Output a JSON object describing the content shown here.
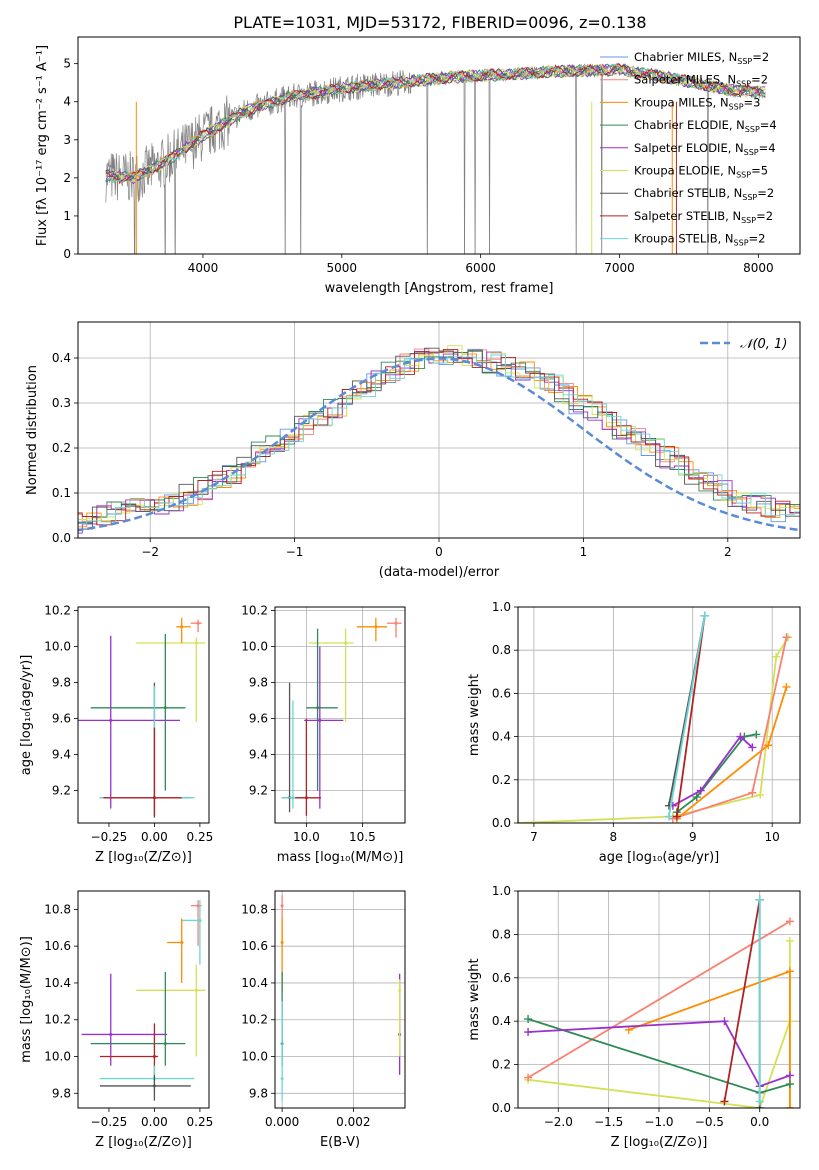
{
  "figure_title": "PLATE=1031, MJD=53172, FIBERID=0096, z=0.138",
  "colors": {
    "Chabrier MILES": "#6495ed",
    "Salpeter MILES": "#fa8072",
    "Kroupa MILES": "#ff8c00",
    "Chabrier ELODIE": "#2e8b57",
    "Salpeter ELODIE": "#9932cc",
    "Kroupa ELODIE": "#d4e157",
    "Chabrier STELIB": "#555555",
    "Salpeter STELIB": "#b22222",
    "Kroupa STELIB": "#6ad6d6",
    "data": "#808080",
    "normal": "#5b8bd6"
  },
  "chart_data": [
    {
      "id": "spectrum",
      "type": "line",
      "title": "PLATE=1031, MJD=53172, FIBERID=0096, z=0.138",
      "xlabel": "wavelength [Angstrom, rest frame]",
      "ylabel": "Flux [fλ 10⁻¹⁷ erg cm⁻² s⁻¹ A⁻¹]",
      "xlim": [
        3100,
        8300
      ],
      "ylim": [
        0,
        5.7
      ],
      "xticks": [
        "4000",
        "5000",
        "6000",
        "7000",
        "8000"
      ],
      "yticks": [
        "0",
        "1",
        "2",
        "3",
        "4",
        "5"
      ],
      "grid": false,
      "legend_position": "top-right",
      "continuum": {
        "x": [
          3300,
          3500,
          3700,
          4000,
          4300,
          4600,
          5000,
          5400,
          5800,
          6200,
          6600,
          7000,
          7400,
          7800,
          8050
        ],
        "y": [
          2.05,
          2.0,
          2.35,
          3.1,
          3.75,
          4.1,
          4.35,
          4.5,
          4.65,
          4.72,
          4.8,
          4.85,
          4.6,
          4.3,
          4.25
        ]
      },
      "legend": [
        {
          "label": "Chabrier MILES, N",
          "sub": "SSP",
          "suffix": "=2",
          "color_key": "Chabrier MILES"
        },
        {
          "label": "Salpeter MILES, N",
          "sub": "SSP",
          "suffix": "=2",
          "color_key": "Salpeter MILES"
        },
        {
          "label": "Kroupa MILES, N",
          "sub": "SSP",
          "suffix": "=3",
          "color_key": "Kroupa MILES"
        },
        {
          "label": "Chabrier ELODIE, N",
          "sub": "SSP",
          "suffix": "=4",
          "color_key": "Chabrier ELODIE"
        },
        {
          "label": "Salpeter ELODIE, N",
          "sub": "SSP",
          "suffix": "=4",
          "color_key": "Salpeter ELODIE"
        },
        {
          "label": "Kroupa ELODIE, N",
          "sub": "SSP",
          "suffix": "=5",
          "color_key": "Kroupa ELODIE"
        },
        {
          "label": "Chabrier STELIB, N",
          "sub": "SSP",
          "suffix": "=2",
          "color_key": "Chabrier STELIB"
        },
        {
          "label": "Salpeter STELIB, N",
          "sub": "SSP",
          "suffix": "=2",
          "color_key": "Salpeter STELIB"
        },
        {
          "label": "Kroupa STELIB, N",
          "sub": "SSP",
          "suffix": "=2",
          "color_key": "Kroupa STELIB"
        }
      ]
    },
    {
      "id": "residuals",
      "type": "line",
      "xlabel": "(data-model)/error",
      "ylabel": "Normed distribution",
      "xlim": [
        -2.5,
        2.5
      ],
      "ylim": [
        0,
        0.48
      ],
      "xticks": [
        "−2",
        "−1",
        "0",
        "1",
        "2"
      ],
      "yticks": [
        "0.0",
        "0.1",
        "0.2",
        "0.3",
        "0.4"
      ],
      "grid": true,
      "legend_position": "top-right",
      "legend_label": "𝒩(0, 1)",
      "normal": {
        "mean": 0,
        "sigma": 1
      },
      "bin_width": 0.1,
      "base_hist": [
        0.02,
        0.022,
        0.025,
        0.03,
        0.035,
        0.04,
        0.047,
        0.055,
        0.063,
        0.07,
        0.078,
        0.085,
        0.095,
        0.11,
        0.125,
        0.145,
        0.165,
        0.19,
        0.21,
        0.23,
        0.25,
        0.27,
        0.29,
        0.31,
        0.33,
        0.35,
        0.37,
        0.385,
        0.395,
        0.4,
        0.41,
        0.405,
        0.4,
        0.39,
        0.38,
        0.37,
        0.355,
        0.34,
        0.32,
        0.3,
        0.28,
        0.26,
        0.24,
        0.22,
        0.2,
        0.18,
        0.16,
        0.14,
        0.12,
        0.105,
        0.09,
        0.08,
        0.07,
        0.06,
        0.052,
        0.045,
        0.038,
        0.032,
        0.027,
        0.023
      ]
    },
    {
      "id": "age_vs_Z",
      "type": "scatter",
      "xlabel": "Z [log₁₀(Z/Z⊙)]",
      "ylabel": "age  [log₁₀(age/yr)]",
      "xlim": [
        -0.42,
        0.3
      ],
      "ylim": [
        9.02,
        10.22
      ],
      "xticks": [
        {
          "v": -0.25,
          "t": "−0.25"
        },
        {
          "v": 0,
          "t": "0.00"
        },
        {
          "v": 0.25,
          "t": "0.25"
        }
      ],
      "yticks": [
        {
          "v": 9.2,
          "t": "9.2"
        },
        {
          "v": 9.4,
          "t": "9.4"
        },
        {
          "v": 9.6,
          "t": "9.6"
        },
        {
          "v": 9.8,
          "t": "9.8"
        },
        {
          "v": 10.0,
          "t": "10.0"
        },
        {
          "v": 10.2,
          "t": "10.2"
        }
      ],
      "grid": false,
      "points": [
        {
          "c": "Kroupa ELODIE",
          "x": 0.23,
          "y": 10.02,
          "x0": -0.1,
          "x1": 0.28,
          "y0": 9.58,
          "y1": 10.05
        },
        {
          "c": "Kroupa MILES",
          "x": 0.15,
          "y": 10.11,
          "x0": 0.12,
          "x1": 0.2,
          "y0": 10.02,
          "y1": 10.16
        },
        {
          "c": "Salpeter MILES",
          "x": 0.24,
          "y": 10.13,
          "x0": 0.2,
          "x1": 0.26,
          "y0": 10.08,
          "y1": 10.15
        },
        {
          "c": "Chabrier ELODIE",
          "x": 0.06,
          "y": 9.66,
          "x0": -0.35,
          "x1": 0.17,
          "y0": 9.2,
          "y1": 10.07
        },
        {
          "c": "Salpeter ELODIE",
          "x": -0.24,
          "y": 9.59,
          "x0": -0.42,
          "x1": 0.14,
          "y0": 9.1,
          "y1": 10.06
        },
        {
          "c": "Chabrier STELIB",
          "x": 0.0,
          "y": 9.16,
          "x0": -0.3,
          "x1": 0.2,
          "y0": 9.05,
          "y1": 9.8
        },
        {
          "c": "Kroupa STELIB",
          "x": 0.0,
          "y": 9.16,
          "x0": -0.3,
          "x1": 0.22,
          "y0": 9.08,
          "y1": 9.78
        },
        {
          "c": "Salpeter STELIB",
          "x": 0.0,
          "y": 9.16,
          "x0": -0.28,
          "x1": 0.15,
          "y0": 9.06,
          "y1": 9.55
        }
      ]
    },
    {
      "id": "age_vs_mass",
      "type": "scatter",
      "xlabel": "mass [log₁₀(M/M⊙)]",
      "ylabel": "",
      "xlim": [
        9.72,
        10.88
      ],
      "ylim": [
        9.02,
        10.22
      ],
      "xticks": [
        {
          "v": 10.0,
          "t": "10.0"
        },
        {
          "v": 10.5,
          "t": "10.5"
        }
      ],
      "yticks": [
        {
          "v": 9.2,
          "t": "9.2"
        },
        {
          "v": 9.4,
          "t": "9.4"
        },
        {
          "v": 9.6,
          "t": "9.6"
        },
        {
          "v": 9.8,
          "t": "9.8"
        },
        {
          "v": 10.0,
          "t": "10.0"
        },
        {
          "v": 10.2,
          "t": "10.2"
        }
      ],
      "grid": true,
      "points": [
        {
          "c": "Kroupa ELODIE",
          "x": 10.35,
          "y": 10.02,
          "x0": 10.02,
          "x1": 10.42,
          "y0": 9.58,
          "y1": 10.1
        },
        {
          "c": "Kroupa MILES",
          "x": 10.62,
          "y": 10.11,
          "x0": 10.45,
          "x1": 10.72,
          "y0": 10.03,
          "y1": 10.16
        },
        {
          "c": "Salpeter MILES",
          "x": 10.8,
          "y": 10.13,
          "x0": 10.72,
          "x1": 10.85,
          "y0": 10.05,
          "y1": 10.16
        },
        {
          "c": "Chabrier ELODIE",
          "x": 10.1,
          "y": 9.66,
          "x0": 10.0,
          "x1": 10.28,
          "y0": 9.2,
          "y1": 10.1
        },
        {
          "c": "Salpeter ELODIE",
          "x": 10.12,
          "y": 9.59,
          "x0": 9.98,
          "x1": 10.33,
          "y0": 9.1,
          "y1": 10.0
        },
        {
          "c": "Chabrier STELIB",
          "x": 9.85,
          "y": 9.16,
          "x0": 9.78,
          "x1": 9.96,
          "y0": 9.08,
          "y1": 9.8
        },
        {
          "c": "Kroupa STELIB",
          "x": 9.88,
          "y": 9.16,
          "x0": 9.78,
          "x1": 9.98,
          "y0": 9.1,
          "y1": 9.7
        },
        {
          "c": "Salpeter STELIB",
          "x": 10.0,
          "y": 9.16,
          "x0": 9.9,
          "x1": 10.13,
          "y0": 9.06,
          "y1": 9.6
        }
      ]
    },
    {
      "id": "cumulative_age",
      "type": "line",
      "xlabel": "age  [log₁₀(age/yr)]",
      "ylabel": "mass weight",
      "xlim": [
        6.8,
        10.35
      ],
      "ylim": [
        0,
        1.0
      ],
      "xticks": [
        {
          "v": 7,
          "t": "7"
        },
        {
          "v": 8,
          "t": "8"
        },
        {
          "v": 9,
          "t": "9"
        },
        {
          "v": 10,
          "t": "10"
        }
      ],
      "yticks": [
        {
          "v": 0,
          "t": "0.0"
        },
        {
          "v": 0.2,
          "t": "0.2"
        },
        {
          "v": 0.4,
          "t": "0.4"
        },
        {
          "v": 0.6,
          "t": "0.6"
        },
        {
          "v": 0.8,
          "t": "0.8"
        },
        {
          "v": 1.0,
          "t": "1.0"
        }
      ],
      "grid": true,
      "series": [
        {
          "c": "Kroupa ELODIE",
          "x": [
            6.8,
            8.75,
            9.85,
            10.05,
            10.2
          ],
          "y": [
            0.0,
            0.03,
            0.13,
            0.77,
            0.86
          ]
        },
        {
          "c": "Kroupa MILES",
          "x": [
            8.8,
            9.95,
            10.18
          ],
          "y": [
            0.02,
            0.36,
            0.63
          ]
        },
        {
          "c": "Salpeter MILES",
          "x": [
            8.75,
            9.75,
            10.18
          ],
          "y": [
            0.02,
            0.14,
            0.86
          ]
        },
        {
          "c": "Chabrier ELODIE",
          "x": [
            8.8,
            9.05,
            9.65,
            9.8
          ],
          "y": [
            0.05,
            0.12,
            0.4,
            0.41
          ]
        },
        {
          "c": "Salpeter ELODIE",
          "x": [
            8.75,
            9.1,
            9.6,
            9.75
          ],
          "y": [
            0.08,
            0.15,
            0.4,
            0.35
          ]
        },
        {
          "c": "Chabrier STELIB",
          "x": [
            8.7,
            9.15
          ],
          "y": [
            0.08,
            0.96
          ]
        },
        {
          "c": "Salpeter STELIB",
          "x": [
            8.8,
            9.15
          ],
          "y": [
            0.03,
            0.96
          ]
        },
        {
          "c": "Kroupa STELIB",
          "x": [
            8.7,
            9.15
          ],
          "y": [
            0.03,
            0.96
          ]
        }
      ]
    },
    {
      "id": "mass_vs_Z",
      "type": "scatter",
      "xlabel": "Z [log₁₀(Z/Z⊙)]",
      "ylabel": "mass [log₁₀(M/M⊙)]",
      "xlim": [
        -0.42,
        0.3
      ],
      "ylim": [
        9.72,
        10.9
      ],
      "xticks": [
        {
          "v": -0.25,
          "t": "−0.25"
        },
        {
          "v": 0,
          "t": "0.00"
        },
        {
          "v": 0.25,
          "t": "0.25"
        }
      ],
      "yticks": [
        {
          "v": 9.8,
          "t": "9.8"
        },
        {
          "v": 10.0,
          "t": "10.0"
        },
        {
          "v": 10.2,
          "t": "10.2"
        },
        {
          "v": 10.4,
          "t": "10.4"
        },
        {
          "v": 10.6,
          "t": "10.6"
        },
        {
          "v": 10.8,
          "t": "10.8"
        }
      ],
      "grid": false,
      "points": [
        {
          "c": "Salpeter MILES",
          "x": 0.24,
          "y": 10.82,
          "x0": 0.2,
          "x1": 0.26,
          "y0": 10.6,
          "y1": 10.85
        },
        {
          "c": "Kroupa STELIB",
          "x": 0.25,
          "y": 10.74,
          "x0": 0.15,
          "x1": 0.26,
          "y0": 10.5,
          "y1": 10.85
        },
        {
          "c": "Kroupa MILES",
          "x": 0.15,
          "y": 10.62,
          "x0": 0.07,
          "x1": 0.16,
          "y0": 10.4,
          "y1": 10.75
        },
        {
          "c": "Kroupa ELODIE",
          "x": 0.23,
          "y": 10.36,
          "x0": -0.1,
          "x1": 0.28,
          "y0": 10.0,
          "y1": 10.5
        },
        {
          "c": "Salpeter ELODIE",
          "x": -0.24,
          "y": 10.12,
          "x0": -0.4,
          "x1": 0.07,
          "y0": 9.95,
          "y1": 10.45
        },
        {
          "c": "Chabrier ELODIE",
          "x": 0.06,
          "y": 10.07,
          "x0": -0.35,
          "x1": 0.17,
          "y0": 9.95,
          "y1": 10.46
        },
        {
          "c": "Salpeter STELIB",
          "x": 0.0,
          "y": 10.0,
          "x0": -0.3,
          "x1": 0.02,
          "y0": 9.9,
          "y1": 10.18
        },
        {
          "c": "Kroupa STELIB",
          "x": 0.0,
          "y": 9.88,
          "x0": -0.3,
          "x1": 0.22,
          "y0": 9.8,
          "y1": 9.95
        },
        {
          "c": "Chabrier STELIB",
          "x": 0.0,
          "y": 9.84,
          "x0": -0.3,
          "x1": 0.2,
          "y0": 9.76,
          "y1": 9.9
        }
      ]
    },
    {
      "id": "mass_vs_ebv",
      "type": "scatter",
      "xlabel": "E(B-V)",
      "ylabel": "",
      "xlim": [
        -0.0002,
        0.00345
      ],
      "ylim": [
        9.72,
        10.9
      ],
      "xticks": [
        {
          "v": 0.0,
          "t": "0.000"
        },
        {
          "v": 0.002,
          "t": "0.002"
        }
      ],
      "yticks": [
        {
          "v": 9.8,
          "t": "9.8"
        },
        {
          "v": 10.0,
          "t": "10.0"
        },
        {
          "v": 10.2,
          "t": "10.2"
        },
        {
          "v": 10.4,
          "t": "10.4"
        },
        {
          "v": 10.6,
          "t": "10.6"
        },
        {
          "v": 10.8,
          "t": "10.8"
        }
      ],
      "grid": true,
      "points": [
        {
          "c": "Salpeter MILES",
          "x": 0.0,
          "y": 10.82,
          "x0": 0.0,
          "x1": 0.0,
          "y0": 10.6,
          "y1": 10.88
        },
        {
          "c": "Kroupa MILES",
          "x": 0.0,
          "y": 10.62,
          "x0": 0.0,
          "x1": 0.0,
          "y0": 10.35,
          "y1": 10.75
        },
        {
          "c": "Chabrier ELODIE",
          "x": 0.0,
          "y": 10.07,
          "x0": 0.0,
          "x1": 0.0,
          "y0": 9.95,
          "y1": 10.46
        },
        {
          "c": "Kroupa STELIB",
          "x": 0.0,
          "y": 9.88,
          "x0": 0.0,
          "x1": 0.0,
          "y0": 9.76,
          "y1": 10.3
        },
        {
          "c": "Salpeter ELODIE",
          "x": 0.0033,
          "y": 10.12,
          "x0": 0.0033,
          "x1": 0.0033,
          "y0": 9.9,
          "y1": 10.45
        },
        {
          "c": "Kroupa ELODIE",
          "x": 0.0033,
          "y": 10.36,
          "x0": 0.0033,
          "x1": 0.0033,
          "y0": 10.0,
          "y1": 10.42
        }
      ]
    },
    {
      "id": "cumulative_Z",
      "type": "line",
      "xlabel": "Z [log₁₀(Z/Z⊙)]",
      "ylabel": "mass weight",
      "xlim": [
        -2.4,
        0.4
      ],
      "ylim": [
        0,
        1.0
      ],
      "xticks": [
        {
          "v": -2.0,
          "t": "−2.0"
        },
        {
          "v": -1.5,
          "t": "−1.5"
        },
        {
          "v": -1.0,
          "t": "−1.0"
        },
        {
          "v": -0.5,
          "t": "−0.5"
        },
        {
          "v": 0.0,
          "t": "0.0"
        }
      ],
      "yticks": [
        {
          "v": 0,
          "t": "0.0"
        },
        {
          "v": 0.2,
          "t": "0.2"
        },
        {
          "v": 0.4,
          "t": "0.4"
        },
        {
          "v": 0.6,
          "t": "0.6"
        },
        {
          "v": 0.8,
          "t": "0.8"
        },
        {
          "v": 1.0,
          "t": "1.0"
        }
      ],
      "grid": true,
      "series": [
        {
          "c": "Kroupa ELODIE",
          "x": [
            -2.3,
            0.0,
            0.3,
            0.3,
            0.3
          ],
          "y": [
            0.13,
            0.0,
            0.4,
            0.77,
            0.0
          ]
        },
        {
          "c": "Kroupa MILES",
          "x": [
            -1.3,
            0.3,
            0.3
          ],
          "y": [
            0.36,
            0.63,
            0.0
          ]
        },
        {
          "c": "Salpeter MILES",
          "x": [
            -2.3,
            0.3
          ],
          "y": [
            0.14,
            0.86
          ]
        },
        {
          "c": "Chabrier ELODIE",
          "x": [
            -2.3,
            0.0,
            0.3
          ],
          "y": [
            0.41,
            0.07,
            0.11
          ]
        },
        {
          "c": "Salpeter ELODIE",
          "x": [
            -2.3,
            -0.35,
            0.0,
            0.3
          ],
          "y": [
            0.35,
            0.4,
            0.1,
            0.15
          ]
        },
        {
          "c": "Salpeter STELIB",
          "x": [
            -0.35,
            0.0
          ],
          "y": [
            0.03,
            0.96
          ]
        },
        {
          "c": "Chabrier STELIB",
          "x": [
            0.0,
            0.0
          ],
          "y": [
            0.0,
            0.96
          ]
        },
        {
          "c": "Kroupa STELIB",
          "x": [
            0.0,
            0.0
          ],
          "y": [
            0.03,
            0.96
          ]
        }
      ]
    }
  ]
}
